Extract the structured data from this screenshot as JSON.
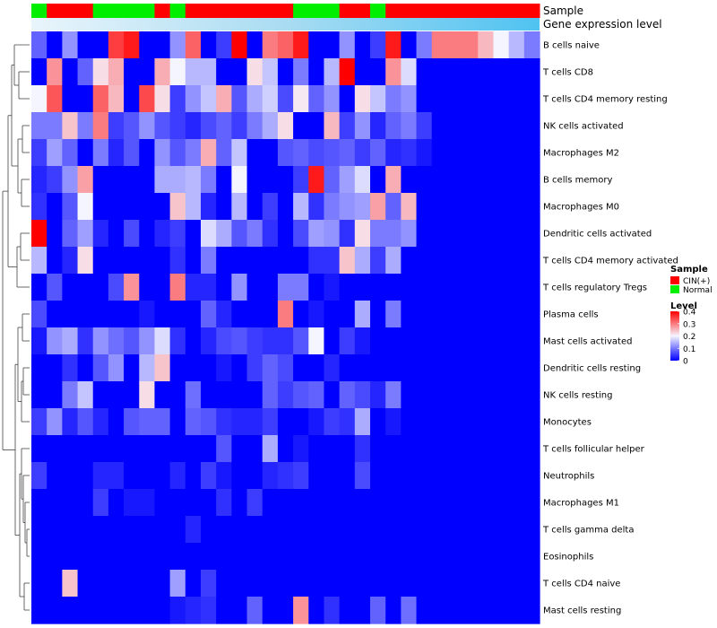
{
  "chart_data": {
    "type": "heatmap",
    "title": "",
    "samples": [
      "N",
      "C",
      "C",
      "C",
      "N",
      "N",
      "N",
      "N",
      "C",
      "N",
      "C",
      "C",
      "C",
      "C",
      "C",
      "C",
      "C",
      "N",
      "N",
      "N",
      "C",
      "C",
      "N",
      "C",
      "C",
      "C",
      "C",
      "C",
      "C",
      "C",
      "C",
      "C",
      "C"
    ],
    "annotation_labels": {
      "sample": "Sample",
      "expression": "Gene expression level"
    },
    "rows": [
      "B cells naive",
      "T cells CD8",
      "T cells CD4 memory resting",
      "NK cells activated",
      "Macrophages M2",
      "B cells memory",
      "Macrophages M0",
      "Dendritic cells activated",
      "T cells CD4 memory activated",
      "T cells regulatory  Tregs",
      "Plasma cells",
      "Mast cells activated",
      "Dendritic cells resting",
      "NK cells resting",
      "Monocytes",
      "T cells follicular helper",
      "Neutrophils",
      "Macrophages M1",
      "T cells gamma delta",
      "Eosinophils",
      "T cells CD4 naive",
      "Mast cells resting"
    ],
    "values": [
      [
        0.08,
        0.0,
        0.12,
        0.0,
        0.0,
        0.35,
        0.38,
        0.0,
        0.0,
        0.12,
        0.32,
        0.0,
        0.05,
        0.4,
        0.0,
        0.3,
        0.32,
        0.38,
        0.0,
        0.0,
        0.12,
        0.0,
        0.05,
        0.38,
        0.0,
        0.1,
        0.3,
        0.3,
        0.3,
        0.25,
        0.2,
        0.15,
        0.1
      ],
      [
        0.0,
        0.28,
        0.0,
        0.08,
        0.22,
        0.26,
        0.0,
        0.0,
        0.26,
        0.2,
        0.15,
        0.15,
        0.0,
        0.0,
        0.22,
        0.16,
        0.0,
        0.1,
        0.0,
        0.15,
        0.4,
        0.0,
        0.0,
        0.28,
        0.18,
        0.0,
        0.0,
        0.0,
        0.0,
        0.0,
        0.0,
        0.0,
        0.0
      ],
      [
        0.2,
        0.33,
        0.0,
        0.0,
        0.32,
        0.25,
        0.0,
        0.34,
        0.22,
        0.05,
        0.12,
        0.16,
        0.26,
        0.07,
        0.14,
        0.17,
        0.06,
        0.21,
        0.08,
        0.12,
        0.0,
        0.22,
        0.16,
        0.1,
        0.12,
        0.0,
        0.0,
        0.0,
        0.0,
        0.0,
        0.0,
        0.0,
        0.0
      ],
      [
        0.1,
        0.1,
        0.24,
        0.1,
        0.3,
        0.05,
        0.07,
        0.12,
        0.07,
        0.05,
        0.03,
        0.06,
        0.08,
        0.05,
        0.1,
        0.14,
        0.22,
        0.0,
        0.0,
        0.25,
        0.05,
        0.12,
        0.03,
        0.08,
        0.1,
        0.05,
        0.0,
        0.0,
        0.0,
        0.0,
        0.0,
        0.0,
        0.0
      ],
      [
        0.05,
        0.13,
        0.08,
        0.0,
        0.1,
        0.03,
        0.07,
        0.0,
        0.12,
        0.07,
        0.1,
        0.26,
        0.08,
        0.16,
        0.0,
        0.0,
        0.07,
        0.08,
        0.06,
        0.07,
        0.08,
        0.05,
        0.08,
        0.03,
        0.04,
        0.02,
        0.0,
        0.0,
        0.0,
        0.0,
        0.0,
        0.0,
        0.0
      ],
      [
        0.03,
        0.05,
        0.12,
        0.27,
        0.0,
        0.0,
        0.0,
        0.0,
        0.14,
        0.14,
        0.15,
        0.1,
        0.0,
        0.2,
        0.0,
        0.0,
        0.0,
        0.05,
        0.38,
        0.08,
        0.13,
        0.18,
        0.0,
        0.26,
        0.0,
        0.0,
        0.0,
        0.0,
        0.0,
        0.0,
        0.0,
        0.0,
        0.0
      ],
      [
        0.04,
        0.0,
        0.07,
        0.2,
        0.0,
        0.0,
        0.0,
        0.0,
        0.0,
        0.24,
        0.15,
        0.03,
        0.0,
        0.15,
        0.0,
        0.05,
        0.0,
        0.15,
        0.04,
        0.1,
        0.12,
        0.13,
        0.27,
        0.08,
        0.25,
        0.0,
        0.0,
        0.0,
        0.0,
        0.0,
        0.0,
        0.0,
        0.0
      ],
      [
        0.4,
        0.0,
        0.08,
        0.13,
        0.03,
        0.0,
        0.06,
        0.0,
        0.03,
        0.05,
        0.0,
        0.18,
        0.14,
        0.07,
        0.1,
        0.04,
        0.0,
        0.06,
        0.13,
        0.12,
        0.04,
        0.22,
        0.1,
        0.1,
        0.12,
        0.0,
        0.0,
        0.0,
        0.0,
        0.0,
        0.0,
        0.0,
        0.0
      ],
      [
        0.15,
        0.0,
        0.03,
        0.22,
        0.0,
        0.0,
        0.0,
        0.0,
        0.0,
        0.04,
        0.0,
        0.1,
        0.0,
        0.0,
        0.0,
        0.0,
        0.0,
        0.0,
        0.04,
        0.04,
        0.24,
        0.14,
        0.05,
        0.14,
        0.0,
        0.0,
        0.0,
        0.0,
        0.0,
        0.0,
        0.0,
        0.0,
        0.0
      ],
      [
        0.0,
        0.07,
        0.0,
        0.0,
        0.0,
        0.06,
        0.28,
        0.0,
        0.0,
        0.3,
        0.03,
        0.03,
        0.0,
        0.12,
        0.0,
        0.0,
        0.1,
        0.1,
        0.0,
        0.02,
        0.0,
        0.0,
        0.0,
        0.0,
        0.0,
        0.0,
        0.0,
        0.0,
        0.0,
        0.0,
        0.0,
        0.0,
        0.0
      ],
      [
        0.06,
        0.0,
        0.0,
        0.0,
        0.0,
        0.0,
        0.0,
        0.02,
        0.0,
        0.0,
        0.0,
        0.08,
        0.03,
        0.0,
        0.0,
        0.0,
        0.3,
        0.0,
        0.02,
        0.0,
        0.0,
        0.14,
        0.0,
        0.1,
        0.0,
        0.0,
        0.0,
        0.0,
        0.0,
        0.0,
        0.0,
        0.0,
        0.0
      ],
      [
        0.02,
        0.12,
        0.14,
        0.04,
        0.12,
        0.09,
        0.07,
        0.12,
        0.18,
        0.04,
        0.0,
        0.03,
        0.06,
        0.07,
        0.05,
        0.04,
        0.04,
        0.07,
        0.2,
        0.0,
        0.05,
        0.02,
        0.0,
        0.0,
        0.0,
        0.0,
        0.0,
        0.0,
        0.0,
        0.0,
        0.0,
        0.0,
        0.0
      ],
      [
        0.0,
        0.0,
        0.04,
        0.0,
        0.07,
        0.12,
        0.0,
        0.15,
        0.24,
        0.0,
        0.0,
        0.0,
        0.02,
        0.0,
        0.05,
        0.08,
        0.06,
        0.0,
        0.0,
        0.03,
        0.0,
        0.0,
        0.0,
        0.0,
        0.0,
        0.0,
        0.0,
        0.0,
        0.0,
        0.0,
        0.0,
        0.0,
        0.0
      ],
      [
        0.0,
        0.0,
        0.1,
        0.16,
        0.0,
        0.0,
        0.0,
        0.22,
        0.0,
        0.0,
        0.09,
        0.0,
        0.0,
        0.0,
        0.0,
        0.08,
        0.05,
        0.07,
        0.08,
        0.0,
        0.08,
        0.06,
        0.03,
        0.1,
        0.0,
        0.0,
        0.0,
        0.0,
        0.0,
        0.0,
        0.0,
        0.0,
        0.0
      ],
      [
        0.05,
        0.12,
        0.03,
        0.07,
        0.03,
        0.0,
        0.07,
        0.08,
        0.08,
        0.0,
        0.08,
        0.07,
        0.04,
        0.03,
        0.03,
        0.05,
        0.0,
        0.0,
        0.02,
        0.05,
        0.04,
        0.14,
        0.0,
        0.02,
        0.0,
        0.0,
        0.0,
        0.0,
        0.0,
        0.0,
        0.0,
        0.0,
        0.0
      ],
      [
        0.0,
        0.0,
        0.0,
        0.0,
        0.0,
        0.0,
        0.0,
        0.0,
        0.0,
        0.0,
        0.0,
        0.0,
        0.07,
        0.0,
        0.0,
        0.14,
        0.0,
        0.02,
        0.0,
        0.0,
        0.0,
        0.04,
        0.0,
        0.0,
        0.0,
        0.0,
        0.0,
        0.0,
        0.0,
        0.0,
        0.0,
        0.0,
        0.0
      ],
      [
        0.05,
        0.0,
        0.0,
        0.0,
        0.03,
        0.03,
        0.0,
        0.0,
        0.0,
        0.03,
        0.0,
        0.05,
        0.02,
        0.0,
        0.0,
        0.03,
        0.04,
        0.05,
        0.0,
        0.0,
        0.0,
        0.06,
        0.0,
        0.0,
        0.0,
        0.0,
        0.0,
        0.0,
        0.0,
        0.0,
        0.0,
        0.0,
        0.0
      ],
      [
        0.0,
        0.0,
        0.0,
        0.0,
        0.05,
        0.0,
        0.02,
        0.02,
        0.0,
        0.0,
        0.0,
        0.0,
        0.04,
        0.0,
        0.05,
        0.0,
        0.0,
        0.0,
        0.0,
        0.0,
        0.0,
        0.0,
        0.0,
        0.0,
        0.0,
        0.0,
        0.0,
        0.0,
        0.0,
        0.0,
        0.0,
        0.0,
        0.0
      ],
      [
        0.0,
        0.0,
        0.0,
        0.0,
        0.0,
        0.0,
        0.0,
        0.0,
        0.0,
        0.0,
        0.03,
        0.0,
        0.0,
        0.0,
        0.0,
        0.0,
        0.0,
        0.0,
        0.0,
        0.0,
        0.0,
        0.0,
        0.0,
        0.0,
        0.0,
        0.0,
        0.0,
        0.0,
        0.0,
        0.0,
        0.0,
        0.0,
        0.0
      ],
      [
        0.0,
        0.0,
        0.0,
        0.0,
        0.0,
        0.0,
        0.0,
        0.0,
        0.0,
        0.0,
        0.0,
        0.0,
        0.0,
        0.0,
        0.0,
        0.0,
        0.0,
        0.0,
        0.0,
        0.0,
        0.0,
        0.0,
        0.0,
        0.0,
        0.0,
        0.0,
        0.0,
        0.0,
        0.0,
        0.0,
        0.0,
        0.0,
        0.0
      ],
      [
        0.0,
        0.0,
        0.24,
        0.0,
        0.0,
        0.0,
        0.0,
        0.0,
        0.0,
        0.13,
        0.0,
        0.05,
        0.0,
        0.0,
        0.0,
        0.0,
        0.0,
        0.0,
        0.0,
        0.0,
        0.0,
        0.0,
        0.0,
        0.0,
        0.0,
        0.0,
        0.0,
        0.0,
        0.0,
        0.0,
        0.0,
        0.0,
        0.0
      ],
      [
        0.0,
        0.0,
        0.0,
        0.0,
        0.0,
        0.0,
        0.0,
        0.0,
        0.0,
        0.02,
        0.03,
        0.04,
        0.0,
        0.0,
        0.08,
        0.0,
        0.0,
        0.28,
        0.0,
        0.04,
        0.0,
        0.0,
        0.08,
        0.0,
        0.09,
        0.0,
        0.0,
        0.0,
        0.0,
        0.0,
        0.0,
        0.0,
        0.0
      ]
    ],
    "color_scale": {
      "min": 0,
      "mid": 0.2,
      "max": 0.4,
      "low_color": "#0000ff",
      "mid_color": "#f5f5ff",
      "high_color": "#ff0000"
    },
    "legend": {
      "sample_title": "Sample",
      "sample_entries": [
        {
          "key": "C",
          "label": "CIN(+)",
          "color": "#ff0000"
        },
        {
          "key": "N",
          "label": "Normal",
          "color": "#00ee00"
        }
      ],
      "level_title": "Level",
      "level_ticks": [
        0.4,
        0.3,
        0.2,
        0.1,
        0
      ],
      "placement": "right"
    },
    "dendrogram": "rows"
  }
}
